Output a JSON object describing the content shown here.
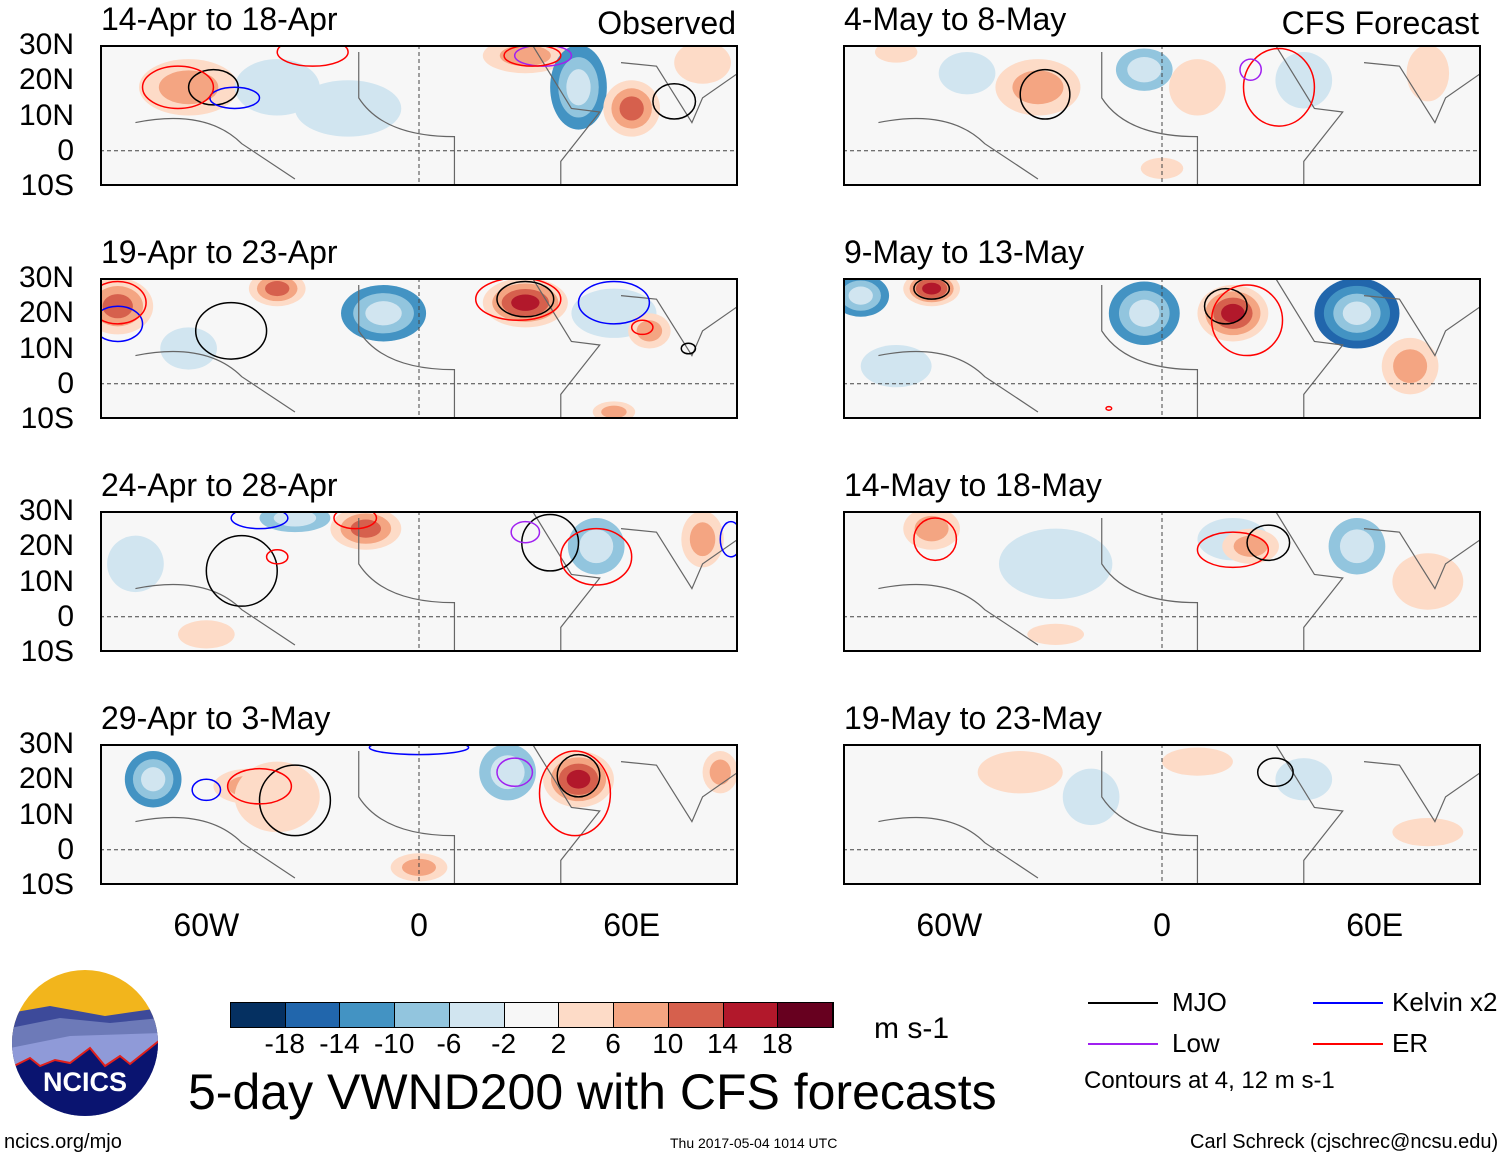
{
  "header": {
    "observed_label": "Observed",
    "forecast_label": "CFS Forecast"
  },
  "lat_labels": [
    "30N",
    "20N",
    "10N",
    "0",
    "10S"
  ],
  "lon_labels": [
    "60W",
    "0",
    "60E"
  ],
  "colors": [
    "#053061",
    "#2166ac",
    "#4393c3",
    "#92c5de",
    "#d1e5f0",
    "#f7f7f7",
    "#fddbc7",
    "#f4a582",
    "#d6604d",
    "#b2182b",
    "#67001f"
  ],
  "contour_colors": {
    "mjo": "#000000",
    "low": "#a020f0",
    "kelvin": "#0000ff",
    "er": "#ff0000"
  },
  "colorbar": {
    "ticks": [
      "-18",
      "-14",
      "-10",
      "-6",
      "-2",
      "2",
      "6",
      "10",
      "14",
      "18"
    ],
    "units": "m s-1"
  },
  "legend": {
    "mjo": "MJO",
    "low": "Low",
    "kelvin": "Kelvin x2",
    "er": "ER",
    "note": "Contours at 4, 12 m s-1"
  },
  "footer": {
    "title": "5-day VWND200 with CFS forecasts",
    "url": "ncics.org/mjo",
    "timestamp": "Thu 2017-05-04 1014 UTC",
    "credit": "Carl Schreck (cjschrec@ncsu.edu)",
    "logo_text": "NCICS"
  },
  "chart_data": {
    "type": "heatmap",
    "variable": "200-hPa meridional wind anomaly",
    "units": "m s-1",
    "lon_range": [
      -90,
      90
    ],
    "lat_range": [
      -10,
      30
    ],
    "panels": [
      {
        "title": "14-Apr to 18-Apr",
        "group": "Observed",
        "anoms": [
          [
            -65,
            18,
            8,
            14,
            8
          ],
          [
            -40,
            18,
            -4,
            12,
            8
          ],
          [
            -20,
            12,
            -4,
            15,
            8
          ],
          [
            30,
            27,
            8,
            12,
            5
          ],
          [
            45,
            18,
            -14,
            8,
            12
          ],
          [
            60,
            12,
            14,
            8,
            8
          ],
          [
            80,
            25,
            6,
            8,
            6
          ]
        ],
        "contours": [
          [
            "mjo",
            -58,
            18,
            7,
            5
          ],
          [
            "kelvin",
            -52,
            15,
            7,
            3
          ],
          [
            "er",
            -68,
            18,
            10,
            6
          ],
          [
            "er",
            -30,
            28,
            10,
            4
          ],
          [
            "low",
            35,
            27,
            8,
            3
          ],
          [
            "er",
            32,
            27,
            8,
            3
          ],
          [
            "mjo",
            72,
            14,
            6,
            5
          ]
        ]
      },
      {
        "title": "19-Apr to 23-Apr",
        "group": "Observed",
        "anoms": [
          [
            -85,
            22,
            14,
            10,
            8
          ],
          [
            -40,
            27,
            12,
            8,
            5
          ],
          [
            -10,
            20,
            -12,
            12,
            8
          ],
          [
            30,
            23,
            16,
            12,
            7
          ],
          [
            55,
            20,
            -6,
            12,
            7
          ],
          [
            65,
            15,
            8,
            6,
            5
          ],
          [
            -65,
            10,
            -6,
            8,
            6
          ],
          [
            55,
            -8,
            8,
            6,
            3
          ]
        ],
        "contours": [
          [
            "mjo",
            -53,
            15,
            10,
            8
          ],
          [
            "kelvin",
            -85,
            17,
            7,
            5
          ],
          [
            "er",
            -85,
            23,
            8,
            6
          ],
          [
            "er",
            28,
            24,
            12,
            6
          ],
          [
            "mjo",
            30,
            24,
            8,
            5
          ],
          [
            "kelvin",
            55,
            23,
            10,
            6
          ],
          [
            "er",
            63,
            16,
            3,
            2
          ],
          [
            "mjo",
            76,
            10,
            2,
            1.5
          ]
        ]
      },
      {
        "title": "24-Apr to 28-Apr",
        "group": "Observed",
        "anoms": [
          [
            -35,
            28,
            -10,
            10,
            4
          ],
          [
            -15,
            25,
            12,
            10,
            6
          ],
          [
            80,
            22,
            8,
            6,
            8
          ],
          [
            50,
            20,
            -8,
            8,
            8
          ],
          [
            -60,
            -5,
            6,
            8,
            4
          ],
          [
            -80,
            15,
            -4,
            8,
            8
          ]
        ],
        "contours": [
          [
            "mjo",
            -50,
            13,
            10,
            10
          ],
          [
            "er",
            -40,
            17,
            3,
            2
          ],
          [
            "kelvin",
            -45,
            28,
            8,
            3
          ],
          [
            "er",
            -18,
            28,
            6,
            3
          ],
          [
            "mjo",
            37,
            21,
            8,
            8
          ],
          [
            "er",
            50,
            17,
            10,
            8
          ],
          [
            "low",
            30,
            24,
            4,
            3
          ],
          [
            "kelvin",
            88,
            22,
            3,
            5
          ]
        ]
      },
      {
        "title": "29-Apr to 3-May",
        "group": "Observed",
        "anoms": [
          [
            -75,
            20,
            -14,
            8,
            8
          ],
          [
            -48,
            18,
            10,
            10,
            5
          ],
          [
            -40,
            15,
            4,
            12,
            10
          ],
          [
            25,
            22,
            -10,
            8,
            8
          ],
          [
            45,
            20,
            16,
            10,
            8
          ],
          [
            0,
            -5,
            8,
            8,
            4
          ],
          [
            85,
            22,
            8,
            5,
            6
          ]
        ],
        "contours": [
          [
            "mjo",
            -35,
            14,
            10,
            10
          ],
          [
            "er",
            -45,
            18,
            9,
            5
          ],
          [
            "kelvin",
            -60,
            17,
            4,
            3
          ],
          [
            "er",
            44,
            16,
            10,
            12
          ],
          [
            "mjo",
            45,
            21,
            6,
            6
          ],
          [
            "low",
            27,
            22,
            5,
            4
          ],
          [
            "kelvin",
            0,
            29,
            14,
            2
          ]
        ]
      },
      {
        "title": "4-May to 8-May",
        "group": "CFS Forecast",
        "anoms": [
          [
            -55,
            22,
            -6,
            8,
            6
          ],
          [
            -35,
            18,
            8,
            12,
            8
          ],
          [
            -5,
            23,
            -8,
            8,
            6
          ],
          [
            10,
            18,
            6,
            8,
            8
          ],
          [
            40,
            20,
            -6,
            8,
            8
          ],
          [
            75,
            22,
            4,
            6,
            8
          ],
          [
            -75,
            28,
            6,
            6,
            3
          ],
          [
            0,
            -5,
            4,
            6,
            3
          ]
        ],
        "contours": [
          [
            "mjo",
            -33,
            16,
            7,
            7
          ],
          [
            "er",
            33,
            18,
            10,
            11
          ],
          [
            "low",
            25,
            23,
            3,
            3
          ]
        ]
      },
      {
        "title": "9-May to 13-May",
        "group": "CFS Forecast",
        "anoms": [
          [
            -85,
            25,
            -12,
            8,
            6
          ],
          [
            -65,
            27,
            16,
            8,
            5
          ],
          [
            -5,
            20,
            -14,
            10,
            9
          ],
          [
            20,
            20,
            18,
            10,
            8
          ],
          [
            55,
            20,
            -18,
            12,
            10
          ],
          [
            70,
            5,
            8,
            8,
            8
          ],
          [
            -75,
            5,
            -4,
            10,
            6
          ]
        ],
        "contours": [
          [
            "mjo",
            -65,
            27,
            5,
            3
          ],
          [
            "mjo",
            18,
            22,
            6,
            5
          ],
          [
            "er",
            24,
            18,
            10,
            10
          ],
          [
            "er",
            -15,
            -7,
            0.8,
            0.5
          ]
        ]
      },
      {
        "title": "14-May to 18-May",
        "group": "CFS Forecast",
        "anoms": [
          [
            -65,
            25,
            10,
            8,
            6
          ],
          [
            -30,
            15,
            -4,
            16,
            10
          ],
          [
            20,
            22,
            -6,
            10,
            6
          ],
          [
            25,
            20,
            10,
            8,
            5
          ],
          [
            55,
            20,
            -10,
            8,
            8
          ],
          [
            75,
            10,
            4,
            10,
            8
          ],
          [
            -30,
            -5,
            4,
            8,
            3
          ]
        ],
        "contours": [
          [
            "er",
            -64,
            22,
            6,
            6
          ],
          [
            "er",
            20,
            19,
            10,
            5
          ],
          [
            "mjo",
            30,
            21,
            6,
            5
          ]
        ]
      },
      {
        "title": "19-May to 23-May",
        "group": "CFS Forecast",
        "anoms": [
          [
            -40,
            22,
            4,
            12,
            6
          ],
          [
            -20,
            15,
            -4,
            8,
            8
          ],
          [
            40,
            20,
            -4,
            8,
            6
          ],
          [
            75,
            5,
            4,
            10,
            4
          ],
          [
            10,
            25,
            4,
            10,
            4
          ]
        ],
        "contours": [
          [
            "mjo",
            32,
            22,
            5,
            4
          ]
        ]
      }
    ]
  }
}
